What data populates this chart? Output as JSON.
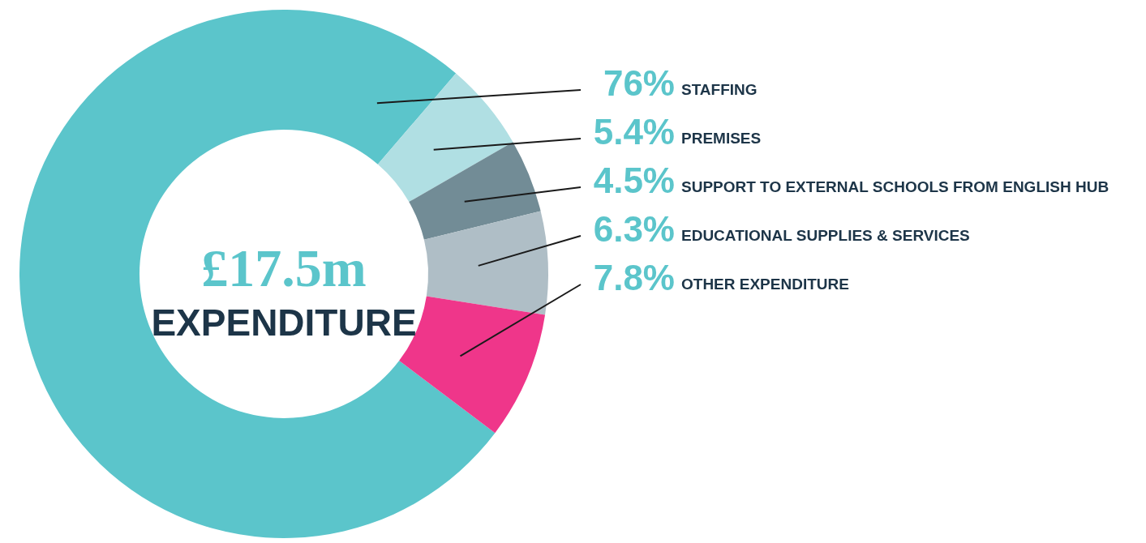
{
  "chart_data": {
    "type": "donut",
    "categories": [
      "STAFFING",
      "PREMISES",
      "SUPPORT TO EXTERNAL SCHOOLS FROM ENGLISH HUB",
      "EDUCATIONAL SUPPLIES & SERVICES",
      "OTHER EXPENDITURE"
    ],
    "values": [
      76,
      5.4,
      4.5,
      6.3,
      7.8
    ],
    "colors": [
      "#5bc5cb",
      "#b0dfe3",
      "#728c96",
      "#afbec6",
      "#ef368a"
    ],
    "value_labels": [
      "76%",
      "5.4%",
      "4.5%",
      "6.3%",
      "7.8%"
    ],
    "annotations": [
      "£17.5m",
      "EXPENDITURE"
    ]
  }
}
